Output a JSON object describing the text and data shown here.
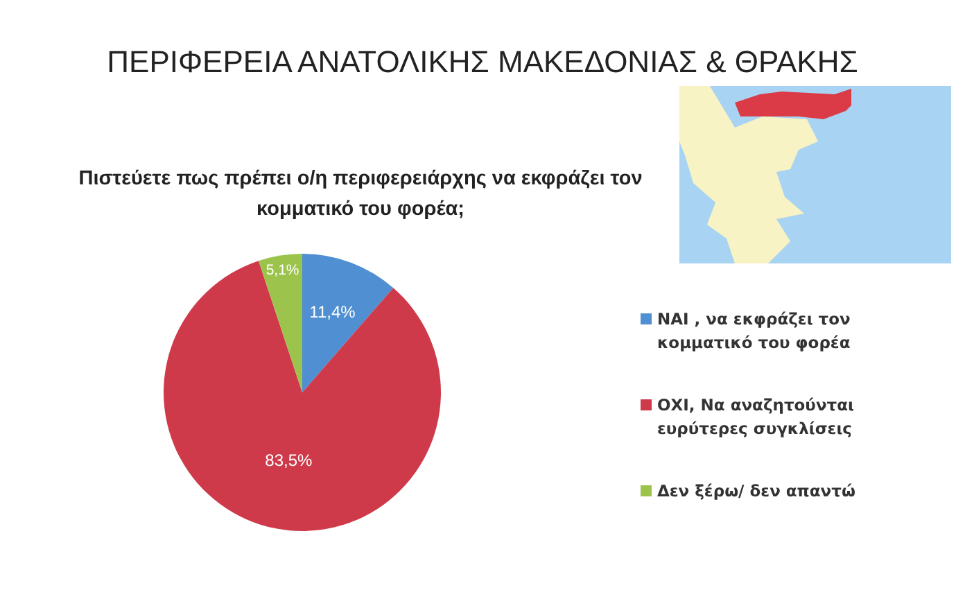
{
  "chart_data": {
    "type": "pie",
    "title": "ΠΕΡΙΦΕΡΕΙΑ ΑΝΑΤΟΛΙΚΗΣ ΜΑΚΕΔΟΝΙΑΣ & ΘΡΑΚΗΣ",
    "subtitle": "Πιστεύετε πως πρέπει ο/η περιφερειάρχης να εκφράζει τον κομματικό του φορέα;",
    "categories": [
      "ΝΑΙ , να εκφράζει τον κομματικό του φορέα",
      "ΟΧΙ, Να αναζητούνται ευρύτερες συγκλίσεις",
      "Δεν ξέρω/ δεν απαντώ"
    ],
    "values": [
      11.4,
      83.5,
      5.1
    ],
    "colors": [
      "#4f8fd2",
      "#cf3a4b",
      "#9cc44c"
    ],
    "value_labels": [
      "11,4%",
      "83,5%",
      "5,1%"
    ],
    "legend": "right"
  }
}
